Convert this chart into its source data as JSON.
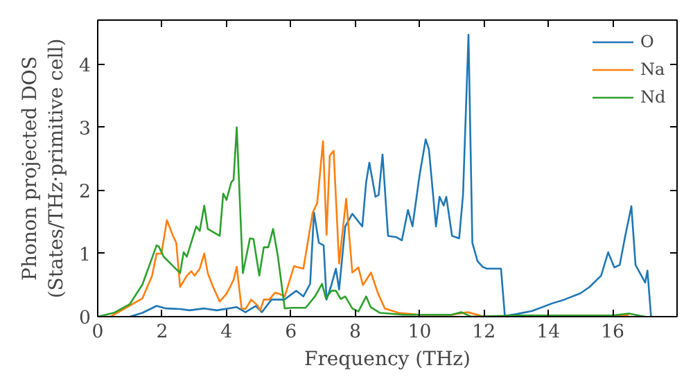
{
  "chart_data": {
    "type": "line",
    "xlabel": "Frequency (THz)",
    "ylabel": "Phonon projected DOS\n(States/THz·primitive cell)",
    "xlim": [
      0,
      18
    ],
    "ylim": [
      0,
      4.7
    ],
    "xticks": [
      0,
      2,
      4,
      6,
      8,
      10,
      12,
      14,
      16
    ],
    "yticks": [
      0,
      1,
      2,
      3,
      4
    ],
    "grid": false,
    "legend": "top right",
    "marker": "none",
    "line_style": "solid",
    "series": [
      {
        "name": "O",
        "color": "#1f77b4",
        "x": [
          1.0,
          1.39,
          1.83,
          2.12,
          2.56,
          2.85,
          3.31,
          3.7,
          4.32,
          4.59,
          4.91,
          5.1,
          5.4,
          5.8,
          6.17,
          6.39,
          6.6,
          6.72,
          6.87,
          7.02,
          7.11,
          7.26,
          7.4,
          7.5,
          7.69,
          7.91,
          8.22,
          8.34,
          8.44,
          8.63,
          8.73,
          8.85,
          9.02,
          9.28,
          9.45,
          9.64,
          9.78,
          10.0,
          10.19,
          10.29,
          10.51,
          10.62,
          10.75,
          10.83,
          11.01,
          11.23,
          11.35,
          11.52,
          11.64,
          11.8,
          11.96,
          12.09,
          12.53,
          12.65,
          13.0,
          13.5,
          14.12,
          14.5,
          15.0,
          15.28,
          15.64,
          15.86,
          16.05,
          16.22,
          16.39,
          16.58,
          16.71,
          17.01,
          17.08,
          17.19
        ],
        "values": [
          0.0,
          0.06,
          0.17,
          0.13,
          0.12,
          0.1,
          0.13,
          0.1,
          0.15,
          0.07,
          0.17,
          0.07,
          0.27,
          0.27,
          0.41,
          0.32,
          0.52,
          1.65,
          1.17,
          1.13,
          0.27,
          0.5,
          0.76,
          0.43,
          1.43,
          1.63,
          1.43,
          2.13,
          2.44,
          1.9,
          1.93,
          2.57,
          1.28,
          1.26,
          1.21,
          1.69,
          1.43,
          2.24,
          2.81,
          2.65,
          1.43,
          1.9,
          1.76,
          1.9,
          1.28,
          1.24,
          1.93,
          4.47,
          1.17,
          0.88,
          0.79,
          0.76,
          0.76,
          0.01,
          0.04,
          0.09,
          0.21,
          0.27,
          0.37,
          0.47,
          0.65,
          1.02,
          0.78,
          0.82,
          1.28,
          1.75,
          0.82,
          0.54,
          0.73,
          0.01
        ]
      },
      {
        "name": "Na",
        "color": "#ff7f0e",
        "x": [
          0.4,
          1.39,
          1.69,
          1.83,
          1.98,
          2.15,
          2.34,
          2.44,
          2.56,
          2.77,
          2.91,
          3.01,
          3.17,
          3.31,
          3.42,
          3.56,
          3.79,
          4.0,
          4.22,
          4.32,
          4.47,
          4.59,
          4.77,
          4.96,
          5.05,
          5.16,
          5.33,
          5.51,
          5.65,
          5.81,
          6.1,
          6.39,
          6.68,
          6.82,
          7.0,
          7.11,
          7.21,
          7.33,
          7.5,
          7.72,
          7.91,
          8.1,
          8.24,
          8.49,
          8.7,
          8.92,
          9.35,
          10.0,
          11.0,
          11.5,
          12.0,
          14.0,
          16.5
        ],
        "values": [
          0.0,
          0.29,
          0.65,
          1.0,
          1.0,
          1.53,
          1.28,
          1.17,
          0.47,
          0.65,
          0.72,
          0.65,
          0.76,
          1.0,
          0.69,
          0.5,
          0.24,
          0.36,
          0.58,
          0.79,
          0.13,
          0.12,
          0.27,
          0.18,
          0.1,
          0.27,
          0.27,
          0.38,
          0.36,
          0.32,
          0.8,
          0.76,
          1.65,
          1.8,
          2.78,
          1.3,
          2.55,
          2.63,
          0.84,
          1.87,
          0.7,
          0.78,
          0.5,
          0.7,
          0.38,
          0.13,
          0.06,
          0.03,
          0.03,
          0.07,
          0.0,
          0.0,
          0.02
        ]
      },
      {
        "name": "Nd",
        "color": "#2ca02c",
        "x": [
          0.0,
          0.5,
          1.0,
          1.39,
          1.83,
          1.9,
          2.05,
          2.56,
          2.67,
          2.77,
          3.06,
          3.17,
          3.31,
          3.42,
          3.79,
          3.9,
          4.0,
          4.15,
          4.22,
          4.32,
          4.51,
          4.73,
          4.84,
          5.02,
          5.16,
          5.3,
          5.45,
          5.6,
          5.81,
          6.03,
          6.46,
          6.75,
          6.97,
          7.09,
          7.26,
          7.4,
          7.55,
          7.69,
          7.91,
          8.1,
          8.34,
          8.48,
          8.77,
          9.5,
          11.0,
          11.3,
          11.6,
          13.0,
          16.0,
          16.5,
          17.0
        ],
        "values": [
          0.0,
          0.06,
          0.2,
          0.51,
          1.13,
          1.11,
          0.95,
          0.69,
          1.02,
          0.95,
          1.43,
          1.36,
          1.76,
          1.39,
          1.28,
          1.95,
          1.85,
          2.13,
          2.17,
          3.0,
          0.69,
          1.24,
          1.23,
          0.65,
          1.1,
          1.1,
          1.39,
          0.95,
          0.13,
          0.14,
          0.14,
          0.32,
          0.52,
          0.29,
          0.41,
          0.41,
          0.28,
          0.32,
          0.13,
          0.08,
          0.32,
          0.15,
          0.06,
          0.03,
          0.03,
          0.07,
          0.0,
          0.02,
          0.02,
          0.05,
          0.0
        ]
      }
    ]
  }
}
